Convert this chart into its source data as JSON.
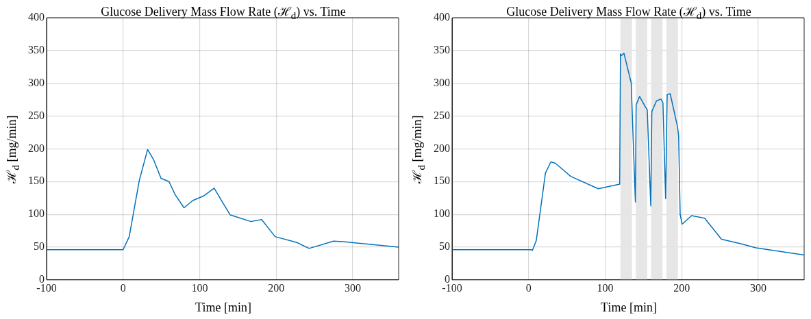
{
  "chart_data": [
    {
      "type": "line",
      "title": "Glucose Delivery Mass Flow Rate (ℋ$_{d}$) vs. Time",
      "xlabel": "Time [min]",
      "ylabel": "ℋ$_{d}$ [mg/min]",
      "xlim": [
        -100,
        360
      ],
      "ylim": [
        0,
        400
      ],
      "xticks": [
        -100,
        0,
        100,
        200,
        300
      ],
      "yticks": [
        0,
        50,
        100,
        150,
        200,
        250,
        300,
        350,
        400
      ],
      "grid": true,
      "marker": "none",
      "series": [
        {
          "color": "#0072bd",
          "x": [
            -100,
            -50,
            0,
            8,
            21,
            32,
            40,
            49.5,
            60,
            68,
            79.6,
            91,
            105,
            119,
            129,
            140,
            167,
            181,
            198.6,
            227,
            243,
            275,
            290,
            360
          ],
          "values": [
            46,
            46,
            46,
            66,
            151,
            199,
            183,
            155,
            150,
            130,
            110,
            121,
            128,
            140,
            120,
            99,
            89,
            92,
            66,
            57,
            48,
            59,
            58,
            50
          ]
        }
      ]
    },
    {
      "type": "line",
      "title": "Glucose Delivery Mass Flow Rate (ℋ$_{d}$) vs. Time",
      "xlabel": "Time [min]",
      "ylabel": "ℋ$_{d}$ [mg/min]",
      "xlim": [
        -100,
        360
      ],
      "ylim": [
        0,
        400
      ],
      "xticks": [
        -100,
        0,
        100,
        200,
        300
      ],
      "yticks": [
        0,
        50,
        100,
        150,
        200,
        250,
        300,
        350,
        400
      ],
      "grid": true,
      "marker": "none",
      "bands": [
        {
          "axis": "x",
          "from": 120,
          "to": 135,
          "color": "#e6e6e6"
        },
        {
          "axis": "x",
          "from": 140,
          "to": 155,
          "color": "#e6e6e6"
        },
        {
          "axis": "x",
          "from": 160,
          "to": 175,
          "color": "#e6e6e6"
        },
        {
          "axis": "x",
          "from": 180,
          "to": 195,
          "color": "#e6e6e6"
        }
      ],
      "series": [
        {
          "color": "#0072bd",
          "x": [
            -100,
            -50,
            3,
            5,
            10,
            22,
            29,
            35,
            55,
            91,
            119,
            120,
            121,
            124.5,
            134,
            139.5,
            140.5,
            145,
            153,
            155,
            159.6,
            161,
            167,
            173,
            175.5,
            179,
            181,
            185,
            194.5,
            196,
            198,
            200.5,
            213,
            230,
            252,
            278,
            297,
            360
          ],
          "values": [
            46,
            46,
            46,
            45,
            60,
            163,
            180,
            178,
            158,
            139,
            146,
            345,
            342,
            346,
            301,
            119,
            267,
            280,
            263,
            260,
            113,
            257,
            273,
            276,
            270,
            124,
            283,
            284,
            234,
            220,
            100,
            85,
            98,
            94,
            62,
            55,
            49,
            38
          ]
        }
      ]
    }
  ]
}
